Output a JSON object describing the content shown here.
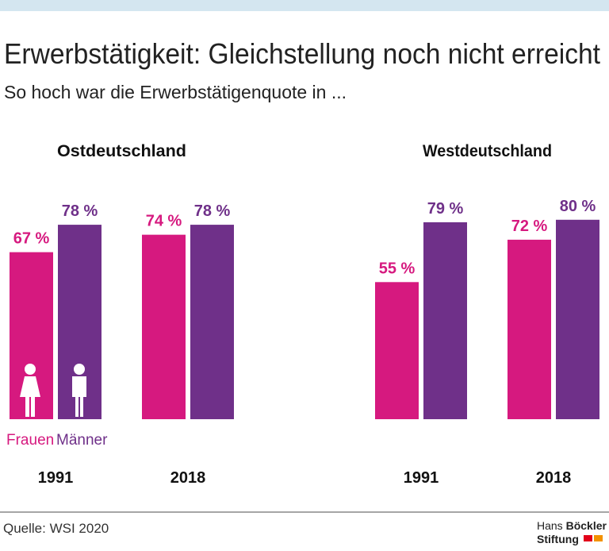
{
  "header": {
    "title": "Erwerbstätigkeit: Gleichstellung noch nicht erreicht",
    "subtitle": "So hoch war die Erwerbstätigenquote in ..."
  },
  "chart_data": [
    {
      "type": "bar",
      "title": "Ostdeutschland",
      "categories": [
        "1991",
        "2018"
      ],
      "ylim": [
        0,
        100
      ],
      "series": [
        {
          "name": "Frauen",
          "color": "#d6197f",
          "values": [
            67,
            74
          ],
          "value_labels": [
            "67 %",
            "74 %"
          ]
        },
        {
          "name": "Männer",
          "color": "#6f3089",
          "values": [
            78,
            78
          ],
          "value_labels": [
            "78 %",
            "78 %"
          ]
        }
      ]
    },
    {
      "type": "bar",
      "title": "Westdeutschland",
      "categories": [
        "1991",
        "2018"
      ],
      "ylim": [
        0,
        100
      ],
      "series": [
        {
          "color": "#d6197f",
          "values": [
            55,
            72
          ],
          "value_labels": [
            "55 %",
            "72 %"
          ]
        },
        {
          "color": "#6f3089",
          "values": [
            79,
            80
          ],
          "value_labels": [
            "79 %",
            "80 %"
          ]
        }
      ]
    }
  ],
  "footer": {
    "source": "Quelle: WSI 2020",
    "logo": {
      "hans": "Hans",
      "boeckler": "Böckler",
      "stiftung": "Stiftung"
    }
  }
}
